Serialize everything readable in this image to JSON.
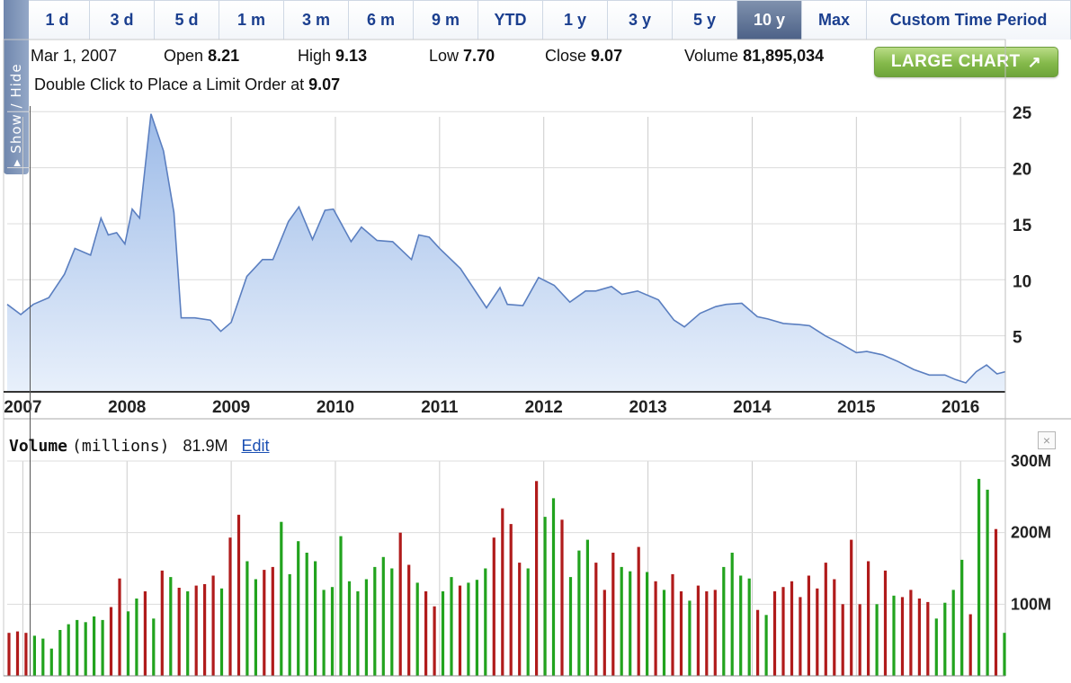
{
  "tabs": [
    "1 d",
    "3 d",
    "5 d",
    "1 m",
    "3 m",
    "6 m",
    "9 m",
    "YTD",
    "1 y",
    "3 y",
    "5 y",
    "10 y",
    "Max",
    "Custom Time Period"
  ],
  "active_tab": "10 y",
  "side_tab_label": "▸ Show / Hide",
  "info": {
    "date": "Mar 1, 2007",
    "open_label": "Open",
    "open": "8.21",
    "high_label": "High",
    "high": "9.13",
    "low_label": "Low",
    "low": "7.70",
    "close_label": "Close",
    "close": "9.07",
    "volume_label": "Volume",
    "volume": "81,895,034"
  },
  "limit_text": "Double Click to Place a Limit Order at",
  "limit_value": "9.07",
  "large_chart_label": "LARGE CHART",
  "large_chart_icon": "↗",
  "volume_panel": {
    "label": "Volume",
    "unit": "(millions)",
    "value": "81.9M",
    "edit_label": "Edit",
    "close_icon": "×"
  },
  "colors": {
    "price_line": "#5b7fc0",
    "price_fill_top": "#9dbbe8",
    "price_fill_bottom": "#e8f0fb",
    "up_bar": "#22a31e",
    "down_bar": "#b01b1b",
    "grid": "#cccccc",
    "active_tab": "#5a6f93"
  },
  "chart_data": [
    {
      "type": "area",
      "x_ticks": [
        "2007",
        "2008",
        "2009",
        "2010",
        "2011",
        "2012",
        "2013",
        "2014",
        "2015",
        "2016"
      ],
      "y_ticks": [
        "5",
        "10",
        "15",
        "20",
        "25"
      ],
      "ylim": [
        0,
        25.5
      ],
      "xlim": [
        2006.95,
        2016.53
      ],
      "grid": true,
      "crosshair_x": 2007.17,
      "series": [
        {
          "values": [
            [
              2006.95,
              7.8
            ],
            [
              2007.08,
              6.9
            ],
            [
              2007.2,
              7.8
            ],
            [
              2007.35,
              8.4
            ],
            [
              2007.5,
              10.5
            ],
            [
              2007.6,
              12.8
            ],
            [
              2007.75,
              12.2
            ],
            [
              2007.85,
              15.5
            ],
            [
              2007.92,
              14.0
            ],
            [
              2008.0,
              14.2
            ],
            [
              2008.08,
              13.2
            ],
            [
              2008.15,
              16.3
            ],
            [
              2008.22,
              15.5
            ],
            [
              2008.33,
              24.8
            ],
            [
              2008.45,
              21.5
            ],
            [
              2008.55,
              16.0
            ],
            [
              2008.62,
              6.6
            ],
            [
              2008.75,
              6.6
            ],
            [
              2008.9,
              6.4
            ],
            [
              2009.0,
              5.4
            ],
            [
              2009.1,
              6.2
            ],
            [
              2009.25,
              10.3
            ],
            [
              2009.4,
              11.8
            ],
            [
              2009.5,
              11.8
            ],
            [
              2009.65,
              15.2
            ],
            [
              2009.75,
              16.5
            ],
            [
              2009.88,
              13.6
            ],
            [
              2010.0,
              16.2
            ],
            [
              2010.08,
              16.3
            ],
            [
              2010.25,
              13.4
            ],
            [
              2010.35,
              14.7
            ],
            [
              2010.5,
              13.5
            ],
            [
              2010.65,
              13.4
            ],
            [
              2010.83,
              11.8
            ],
            [
              2010.9,
              14.0
            ],
            [
              2011.0,
              13.8
            ],
            [
              2011.1,
              12.8
            ],
            [
              2011.3,
              11.0
            ],
            [
              2011.55,
              7.5
            ],
            [
              2011.68,
              9.3
            ],
            [
              2011.75,
              7.8
            ],
            [
              2011.9,
              7.7
            ],
            [
              2012.05,
              10.2
            ],
            [
              2012.2,
              9.5
            ],
            [
              2012.35,
              8.0
            ],
            [
              2012.5,
              9.0
            ],
            [
              2012.6,
              9.0
            ],
            [
              2012.75,
              9.4
            ],
            [
              2012.85,
              8.7
            ],
            [
              2013.0,
              9.0
            ],
            [
              2013.2,
              8.2
            ],
            [
              2013.35,
              6.4
            ],
            [
              2013.45,
              5.8
            ],
            [
              2013.6,
              7.0
            ],
            [
              2013.75,
              7.6
            ],
            [
              2013.85,
              7.8
            ],
            [
              2014.0,
              7.9
            ],
            [
              2014.15,
              6.7
            ],
            [
              2014.25,
              6.5
            ],
            [
              2014.4,
              6.1
            ],
            [
              2014.55,
              6.0
            ],
            [
              2014.65,
              5.9
            ],
            [
              2014.8,
              5.0
            ],
            [
              2014.95,
              4.3
            ],
            [
              2015.1,
              3.5
            ],
            [
              2015.2,
              3.6
            ],
            [
              2015.35,
              3.3
            ],
            [
              2015.5,
              2.7
            ],
            [
              2015.65,
              2.0
            ],
            [
              2015.8,
              1.5
            ],
            [
              2015.95,
              1.5
            ],
            [
              2016.05,
              1.1
            ],
            [
              2016.15,
              0.8
            ],
            [
              2016.25,
              1.8
            ],
            [
              2016.35,
              2.4
            ],
            [
              2016.45,
              1.6
            ],
            [
              2016.53,
              1.8
            ]
          ]
        }
      ]
    },
    {
      "type": "bar",
      "y_ticks": [
        "100M",
        "200M",
        "300M"
      ],
      "ylim": [
        0,
        300
      ],
      "grid": true,
      "bars": [
        [
          2006.98,
          60,
          "down"
        ],
        [
          2007.04,
          62,
          "down"
        ],
        [
          2007.1,
          60,
          "down"
        ],
        [
          2007.16,
          56,
          "up"
        ],
        [
          2007.22,
          52,
          "up"
        ],
        [
          2007.28,
          38,
          "up"
        ],
        [
          2007.34,
          64,
          "up"
        ],
        [
          2007.4,
          72,
          "up"
        ],
        [
          2007.46,
          78,
          "up"
        ],
        [
          2007.52,
          75,
          "up"
        ],
        [
          2007.58,
          83,
          "up"
        ],
        [
          2007.64,
          78,
          "up"
        ],
        [
          2007.7,
          96,
          "down"
        ],
        [
          2007.76,
          136,
          "down"
        ],
        [
          2007.82,
          90,
          "up"
        ],
        [
          2007.88,
          108,
          "up"
        ],
        [
          2007.94,
          118,
          "down"
        ],
        [
          2008.0,
          80,
          "up"
        ],
        [
          2008.06,
          147,
          "down"
        ],
        [
          2008.12,
          138,
          "up"
        ],
        [
          2008.18,
          123,
          "down"
        ],
        [
          2008.24,
          118,
          "up"
        ],
        [
          2008.3,
          126,
          "down"
        ],
        [
          2008.36,
          128,
          "down"
        ],
        [
          2008.42,
          140,
          "down"
        ],
        [
          2008.48,
          122,
          "up"
        ],
        [
          2008.54,
          193,
          "down"
        ],
        [
          2008.6,
          225,
          "down"
        ],
        [
          2008.66,
          160,
          "up"
        ],
        [
          2008.72,
          135,
          "up"
        ],
        [
          2008.78,
          148,
          "down"
        ],
        [
          2008.84,
          152,
          "down"
        ],
        [
          2008.9,
          215,
          "up"
        ],
        [
          2008.96,
          142,
          "up"
        ],
        [
          2009.02,
          188,
          "up"
        ],
        [
          2009.08,
          172,
          "up"
        ],
        [
          2009.14,
          160,
          "up"
        ],
        [
          2009.2,
          120,
          "up"
        ],
        [
          2009.26,
          124,
          "up"
        ],
        [
          2009.32,
          195,
          "up"
        ],
        [
          2009.38,
          132,
          "up"
        ],
        [
          2009.44,
          118,
          "up"
        ],
        [
          2009.5,
          135,
          "up"
        ],
        [
          2009.56,
          152,
          "up"
        ],
        [
          2009.62,
          166,
          "up"
        ],
        [
          2009.68,
          150,
          "up"
        ],
        [
          2009.74,
          200,
          "down"
        ],
        [
          2009.8,
          155,
          "down"
        ],
        [
          2009.86,
          130,
          "up"
        ],
        [
          2009.92,
          118,
          "down"
        ],
        [
          2009.98,
          97,
          "down"
        ],
        [
          2010.04,
          118,
          "up"
        ],
        [
          2010.1,
          138,
          "up"
        ],
        [
          2010.16,
          126,
          "down"
        ],
        [
          2010.22,
          130,
          "up"
        ],
        [
          2010.28,
          134,
          "up"
        ],
        [
          2010.34,
          150,
          "up"
        ],
        [
          2010.4,
          193,
          "down"
        ],
        [
          2010.46,
          234,
          "down"
        ],
        [
          2010.52,
          212,
          "down"
        ],
        [
          2010.58,
          158,
          "down"
        ],
        [
          2010.64,
          150,
          "up"
        ],
        [
          2010.7,
          272,
          "down"
        ],
        [
          2010.76,
          222,
          "up"
        ],
        [
          2010.82,
          248,
          "up"
        ],
        [
          2010.88,
          218,
          "down"
        ],
        [
          2010.94,
          138,
          "up"
        ],
        [
          2011.0,
          175,
          "up"
        ],
        [
          2011.06,
          190,
          "up"
        ],
        [
          2011.12,
          158,
          "down"
        ],
        [
          2011.18,
          120,
          "down"
        ],
        [
          2011.24,
          172,
          "down"
        ],
        [
          2011.3,
          152,
          "up"
        ],
        [
          2011.36,
          146,
          "up"
        ],
        [
          2011.42,
          180,
          "down"
        ],
        [
          2011.48,
          145,
          "up"
        ],
        [
          2011.54,
          132,
          "down"
        ],
        [
          2011.6,
          120,
          "up"
        ],
        [
          2011.66,
          142,
          "down"
        ],
        [
          2011.72,
          118,
          "down"
        ],
        [
          2011.78,
          105,
          "up"
        ],
        [
          2011.84,
          126,
          "down"
        ],
        [
          2011.9,
          118,
          "down"
        ],
        [
          2011.96,
          120,
          "down"
        ],
        [
          2012.02,
          152,
          "up"
        ],
        [
          2012.08,
          172,
          "up"
        ],
        [
          2012.14,
          140,
          "up"
        ],
        [
          2012.2,
          136,
          "up"
        ],
        [
          2012.26,
          92,
          "down"
        ],
        [
          2012.32,
          85,
          "up"
        ],
        [
          2012.38,
          118,
          "down"
        ],
        [
          2012.44,
          124,
          "down"
        ],
        [
          2012.5,
          132,
          "down"
        ],
        [
          2012.56,
          110,
          "down"
        ],
        [
          2012.62,
          140,
          "down"
        ],
        [
          2012.68,
          122,
          "down"
        ],
        [
          2012.74,
          158,
          "down"
        ],
        [
          2012.8,
          135,
          "down"
        ],
        [
          2012.86,
          100,
          "down"
        ],
        [
          2012.92,
          190,
          "down"
        ],
        [
          2012.98,
          100,
          "down"
        ],
        [
          2013.04,
          160,
          "down"
        ],
        [
          2013.1,
          100,
          "up"
        ],
        [
          2013.16,
          147,
          "down"
        ],
        [
          2013.22,
          112,
          "up"
        ],
        [
          2013.28,
          110,
          "down"
        ],
        [
          2013.34,
          120,
          "down"
        ],
        [
          2013.4,
          108,
          "down"
        ],
        [
          2013.46,
          103,
          "down"
        ],
        [
          2013.52,
          80,
          "up"
        ],
        [
          2013.58,
          102,
          "up"
        ],
        [
          2013.64,
          120,
          "up"
        ],
        [
          2013.7,
          162,
          "up"
        ],
        [
          2013.76,
          86,
          "down"
        ],
        [
          2013.82,
          275,
          "up"
        ],
        [
          2013.88,
          260,
          "up"
        ],
        [
          2013.94,
          205,
          "down"
        ],
        [
          2014.0,
          60,
          "up"
        ]
      ]
    }
  ]
}
